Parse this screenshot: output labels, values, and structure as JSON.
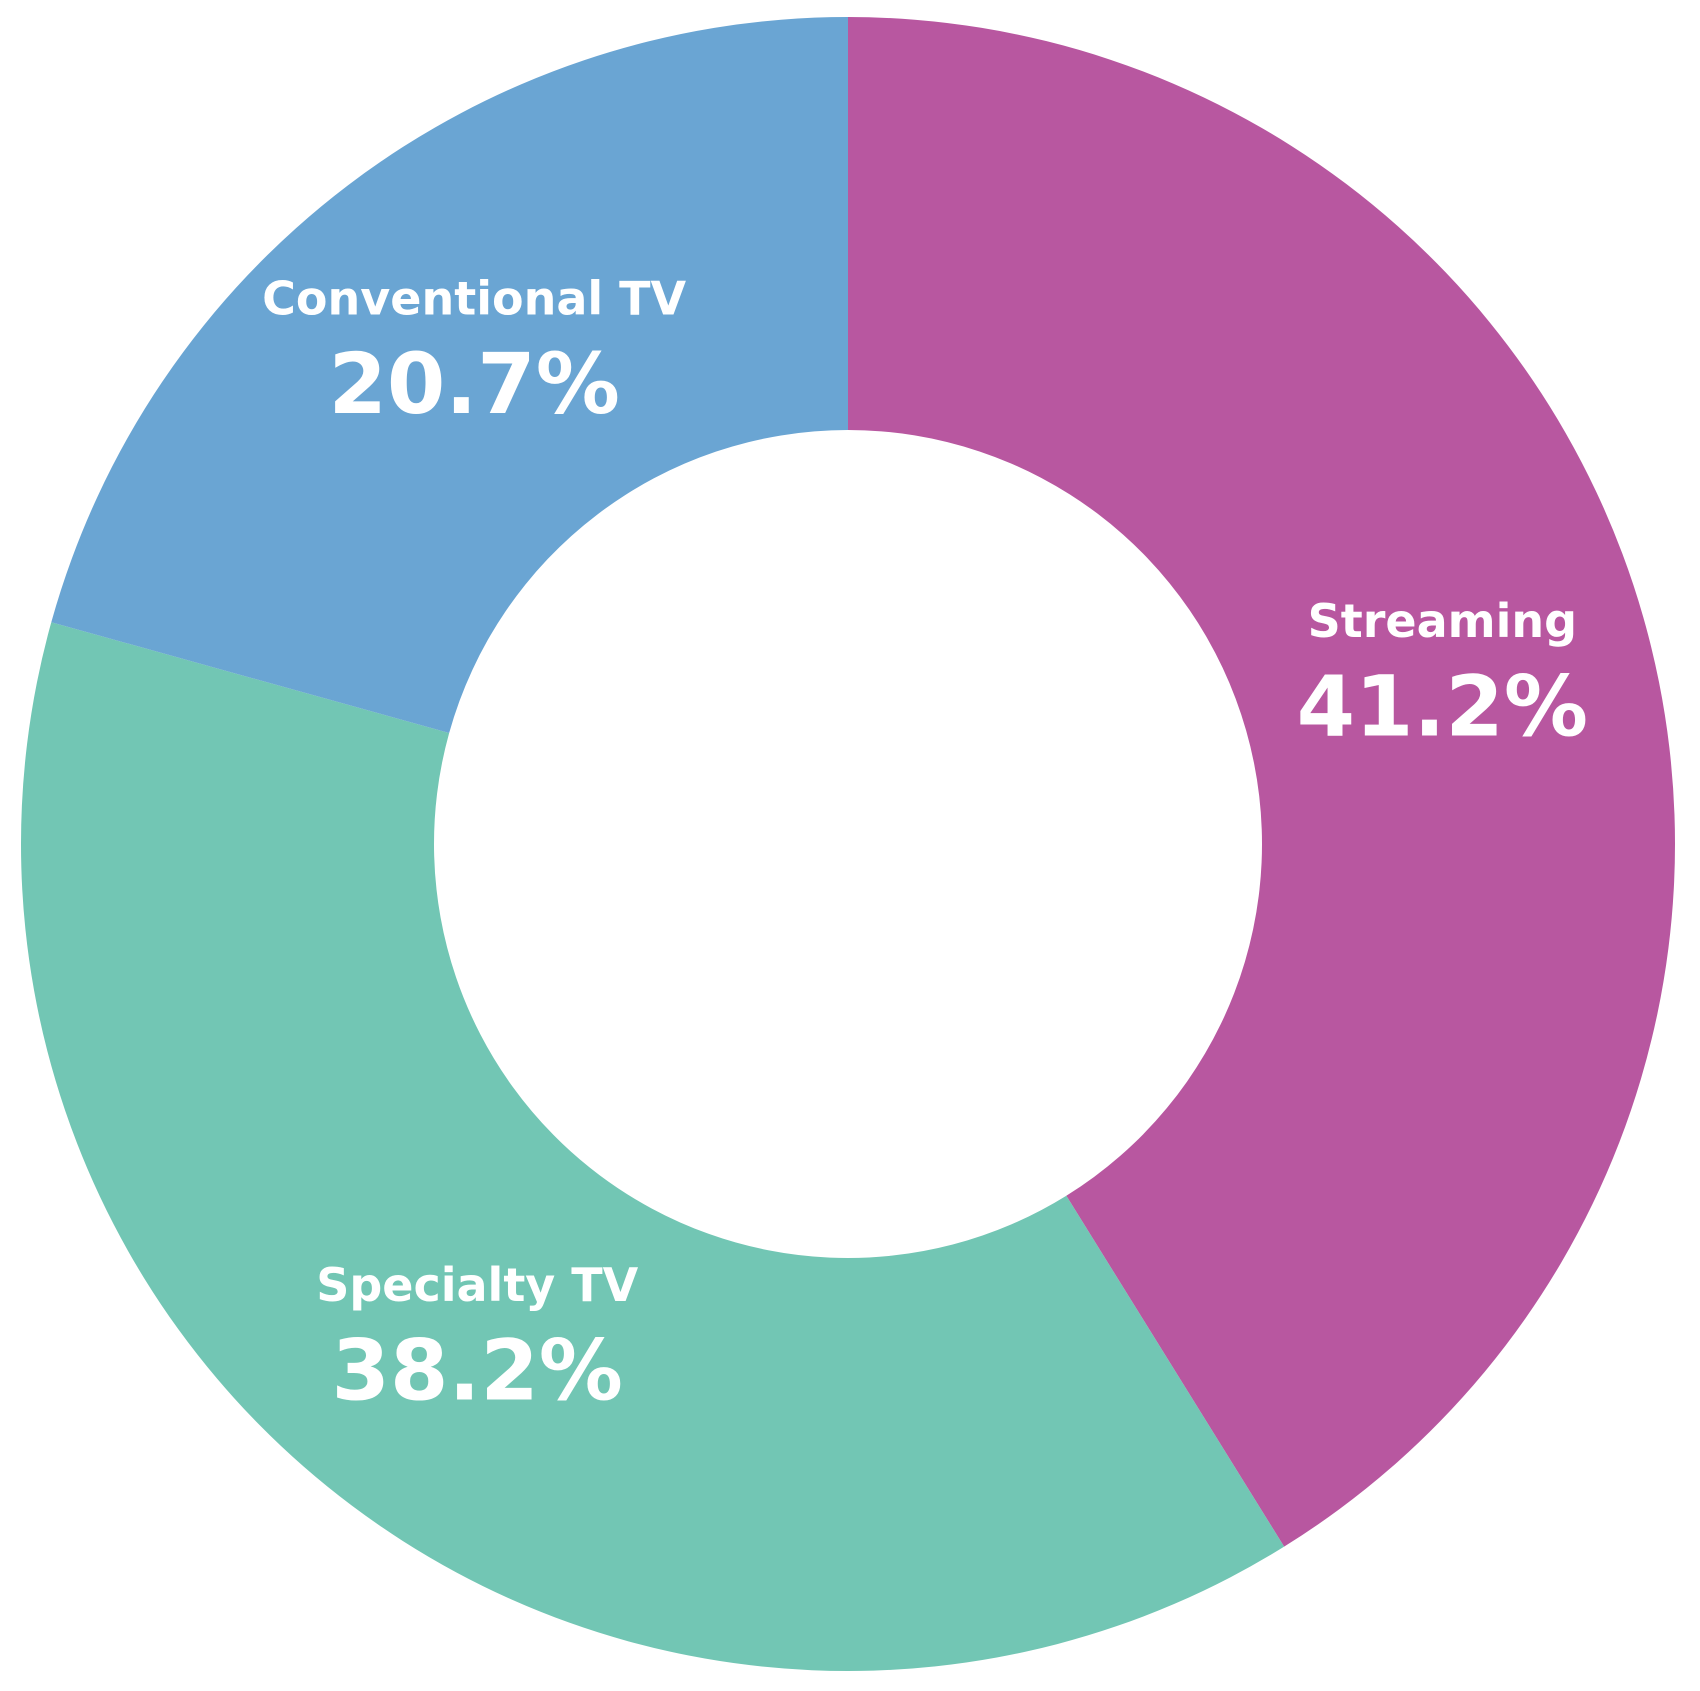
{
  "chart_data": {
    "type": "donut",
    "categories": [
      "Streaming",
      "Specialty TV",
      "Conventional TV"
    ],
    "values": [
      41.2,
      38.2,
      20.7
    ],
    "value_labels": [
      "41.2%",
      "38.2%",
      "20.7%"
    ],
    "colors": [
      "#b857a0",
      "#72c6b4",
      "#6aa5d3"
    ]
  }
}
